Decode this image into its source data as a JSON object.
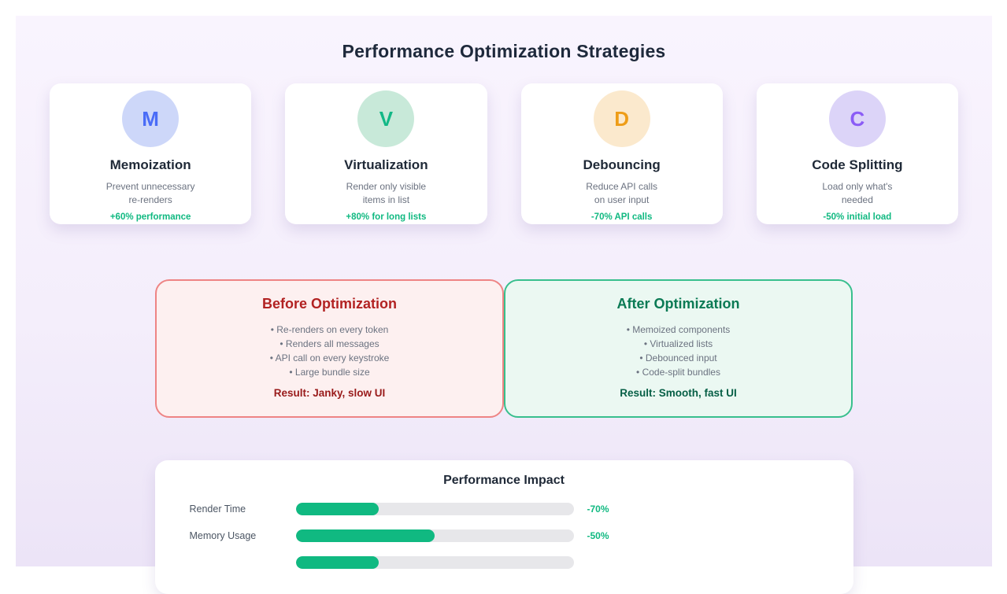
{
  "page": {
    "title": "Performance Optimization Strategies"
  },
  "colors": {
    "page_background": "#ffffff",
    "panel_background_top": "#f9f4fe",
    "panel_background_bottom": "#ece4f7",
    "title_text": "#1e293b",
    "accent_green": "#10b981",
    "card_background": "#ffffff",
    "before_background": "#fdf0f0",
    "before_border": "#ee8484",
    "before_title_text": "#b22222",
    "before_result_text": "#991b1b",
    "after_background": "#ebf8f2",
    "after_border": "#38bf8d",
    "after_title_text": "#0a7a54",
    "after_result_text": "#065f46",
    "bar_track": "#e7e7ea",
    "bar_fill": "#10b981"
  },
  "strategy_cards": [
    {
      "letter": "M",
      "letter_color": "#4a6cf7",
      "circle_bg": "#cdd7f9",
      "title": "Memoization",
      "description_lines": [
        "Prevent unnecessary",
        "re-renders"
      ],
      "stat": "+60% performance"
    },
    {
      "letter": "V",
      "letter_color": "#12b886",
      "circle_bg": "#c8e9d9",
      "title": "Virtualization",
      "description_lines": [
        "Render only visible",
        "items in list"
      ],
      "stat": "+80% for long lists"
    },
    {
      "letter": "D",
      "letter_color": "#ee9d18",
      "circle_bg": "#fbe9cd",
      "title": "Debouncing",
      "description_lines": [
        "Reduce API calls",
        "on user input"
      ],
      "stat": "-70% API calls"
    },
    {
      "letter": "C",
      "letter_color": "#8b5cf6",
      "circle_bg": "#dcd4f8",
      "title": "Code Splitting",
      "description_lines": [
        "Load only what's",
        "needed"
      ],
      "stat": "-50% initial load"
    }
  ],
  "comparison": {
    "before": {
      "title": "Before Optimization",
      "items": [
        "Re-renders on every token",
        "Renders all messages",
        "API call on every keystroke",
        "Large bundle size"
      ],
      "result": "Result: Janky, slow UI"
    },
    "after": {
      "title": "After Optimization",
      "items": [
        "Memoized components",
        "Virtualized lists",
        "Debounced input",
        "Code-split bundles"
      ],
      "result": "Result: Smooth, fast UI"
    }
  },
  "impact": {
    "title": "Performance Impact",
    "rows": [
      {
        "label": "Render Time",
        "value": "-70%",
        "fill_percent": 30
      },
      {
        "label": "Memory Usage",
        "value": "-50%",
        "fill_percent": 50
      },
      {
        "label": "",
        "value": "",
        "fill_percent": 30
      }
    ]
  },
  "chart_data": {
    "type": "bar",
    "orientation": "horizontal",
    "title": "Performance Impact",
    "categories": [
      "Render Time",
      "Memory Usage",
      ""
    ],
    "value_labels": [
      "-70%",
      "-50%",
      ""
    ],
    "values": [
      -70,
      -50,
      null
    ],
    "bar_fill_percentages": [
      30,
      50,
      30
    ],
    "xlim": [
      0,
      100
    ],
    "grid": false,
    "legend": false
  }
}
